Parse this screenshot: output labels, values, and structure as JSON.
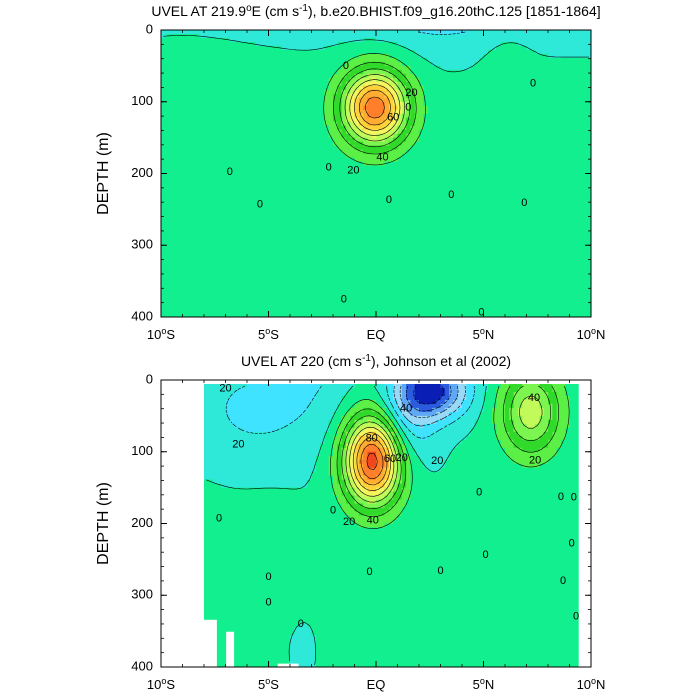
{
  "chart_data": [
    {
      "type": "heatmap",
      "title_parts": [
        "UVEL AT 219.9",
        "o",
        "E (cm s",
        "-1",
        "), b.e20.BHIST.f09_g16.20thC.125 [1851-1864]"
      ],
      "ylabel": "DEPTH (m)",
      "x_ticks": [
        {
          "value": -10,
          "num": "10",
          "deg": "o",
          "hemi": "S"
        },
        {
          "value": -5,
          "num": "5",
          "deg": "o",
          "hemi": "S"
        },
        {
          "value": 0,
          "num": "EQ",
          "deg": "",
          "hemi": ""
        },
        {
          "value": 5,
          "num": "5",
          "deg": "o",
          "hemi": "N"
        },
        {
          "value": 10,
          "num": "10",
          "deg": "o",
          "hemi": "N"
        }
      ],
      "y_ticks": [
        0,
        100,
        200,
        300,
        400
      ],
      "xlim": [
        -10,
        10
      ],
      "ylim": [
        0,
        400
      ],
      "y_inverted": true,
      "contour_interval": 10,
      "colormap": [
        "#0a1fb5",
        "#2b5ce0",
        "#5fa8f5",
        "#9ad8f7",
        "#3fe3ff",
        "#2ee8d8",
        "#12ef8e",
        "#5cf046",
        "#30d92a",
        "#7cf550",
        "#c2fa5a",
        "#f5f560",
        "#ffd23c",
        "#ffad32",
        "#ff7f2a",
        "#f2461e",
        "#d9141a",
        "#a5001c"
      ],
      "features": [
        {
          "kind": "jet",
          "name": "EUC core",
          "lon": -0.05,
          "depth": 108,
          "max": 85,
          "width_lon": 1.55,
          "width_depth": 52
        },
        {
          "kind": "band",
          "lon": -4.8,
          "depth": 300,
          "value": 6
        },
        {
          "kind": "band",
          "lon": 6.2,
          "depth": 80,
          "value": 8
        }
      ],
      "contour_labels": [
        {
          "text": "0",
          "lon": -1.4,
          "depth": 50
        },
        {
          "text": "20",
          "lon": 1.65,
          "depth": 88
        },
        {
          "text": "60",
          "lon": 0.8,
          "depth": 122
        },
        {
          "text": "0",
          "lon": 1.5,
          "depth": 108
        },
        {
          "text": "40",
          "lon": 0.3,
          "depth": 178
        },
        {
          "text": "20",
          "lon": -1.05,
          "depth": 196
        },
        {
          "text": "0",
          "lon": -2.2,
          "depth": 192
        },
        {
          "text": "0",
          "lon": -6.8,
          "depth": 198
        },
        {
          "text": "0",
          "lon": -5.4,
          "depth": 243
        },
        {
          "text": "0",
          "lon": 0.6,
          "depth": 237
        },
        {
          "text": "0",
          "lon": 3.5,
          "depth": 230
        },
        {
          "text": "0",
          "lon": 6.9,
          "depth": 241
        },
        {
          "text": "0",
          "lon": 7.3,
          "depth": 75
        },
        {
          "text": "0",
          "lon": -1.5,
          "depth": 376
        },
        {
          "text": "0",
          "lon": 4.9,
          "depth": 394
        }
      ]
    },
    {
      "type": "heatmap",
      "title_parts": [
        "UVEL AT 220 (cm s",
        "-1",
        "), Johnson et al (2002)",
        "",
        ""
      ],
      "ylabel": "DEPTH (m)",
      "x_ticks": [
        {
          "value": -10,
          "num": "10",
          "deg": "o",
          "hemi": "S"
        },
        {
          "value": -5,
          "num": "5",
          "deg": "o",
          "hemi": "S"
        },
        {
          "value": 0,
          "num": "EQ",
          "deg": "",
          "hemi": ""
        },
        {
          "value": 5,
          "num": "5",
          "deg": "o",
          "hemi": "N"
        },
        {
          "value": 10,
          "num": "10",
          "deg": "o",
          "hemi": "N"
        }
      ],
      "y_ticks": [
        0,
        100,
        200,
        300,
        400
      ],
      "xlim": [
        -10,
        10
      ],
      "ylim": [
        0,
        400
      ],
      "y_inverted": true,
      "data_extent": {
        "lon": [
          -7.9,
          9.4
        ],
        "depth": [
          5,
          400
        ]
      },
      "contour_interval": 10,
      "colormap": [
        "#0a1fb5",
        "#2b5ce0",
        "#5fa8f5",
        "#9ad8f7",
        "#3fe3ff",
        "#2ee8d8",
        "#12ef8e",
        "#5cf046",
        "#30d92a",
        "#7cf550",
        "#c2fa5a",
        "#f5f560",
        "#ffd23c",
        "#ffad32",
        "#ff7f2a",
        "#f2461e",
        "#d9141a",
        "#a5001c"
      ],
      "features": [
        {
          "kind": "jet",
          "name": "EUC core",
          "lon": -0.15,
          "depth": 112,
          "max": 95,
          "width_lon": 1.35,
          "width_depth": 62
        },
        {
          "kind": "jet",
          "name": "SEC",
          "lon": 2.6,
          "depth": 15,
          "max": -55,
          "width_lon": 1.6,
          "width_depth": 38
        },
        {
          "kind": "jet",
          "name": "NECC",
          "lon": 7.2,
          "depth": 45,
          "max": 45,
          "width_lon": 1.4,
          "width_depth": 60
        }
      ],
      "contour_labels": [
        {
          "text": "20",
          "lon": -7.0,
          "depth": 12
        },
        {
          "text": "20",
          "lon": -6.4,
          "depth": 90
        },
        {
          "text": "40",
          "lon": 1.4,
          "depth": 40
        },
        {
          "text": "80",
          "lon": -0.2,
          "depth": 82
        },
        {
          "text": "60",
          "lon": 0.65,
          "depth": 110
        },
        {
          "text": "20",
          "lon": 1.2,
          "depth": 109
        },
        {
          "text": "20",
          "lon": 2.85,
          "depth": 113
        },
        {
          "text": "40",
          "lon": 7.35,
          "depth": 25
        },
        {
          "text": "20",
          "lon": 7.4,
          "depth": 112
        },
        {
          "text": "0",
          "lon": 4.8,
          "depth": 157
        },
        {
          "text": "0",
          "lon": 8.6,
          "depth": 163
        },
        {
          "text": "0",
          "lon": 9.2,
          "depth": 164
        },
        {
          "text": "0",
          "lon": -2.0,
          "depth": 182
        },
        {
          "text": "0",
          "lon": -7.3,
          "depth": 193
        },
        {
          "text": "40",
          "lon": -0.15,
          "depth": 196
        },
        {
          "text": "20",
          "lon": -1.25,
          "depth": 198
        },
        {
          "text": "0",
          "lon": 9.1,
          "depth": 228
        },
        {
          "text": "0",
          "lon": 5.1,
          "depth": 244
        },
        {
          "text": "0",
          "lon": 3.0,
          "depth": 266
        },
        {
          "text": "0",
          "lon": -0.3,
          "depth": 268
        },
        {
          "text": "0",
          "lon": -5.0,
          "depth": 275
        },
        {
          "text": "0",
          "lon": 8.7,
          "depth": 280
        },
        {
          "text": "0",
          "lon": -5.0,
          "depth": 310
        },
        {
          "text": "0",
          "lon": 9.3,
          "depth": 330
        },
        {
          "text": "0",
          "lon": -3.5,
          "depth": 340
        }
      ]
    }
  ]
}
